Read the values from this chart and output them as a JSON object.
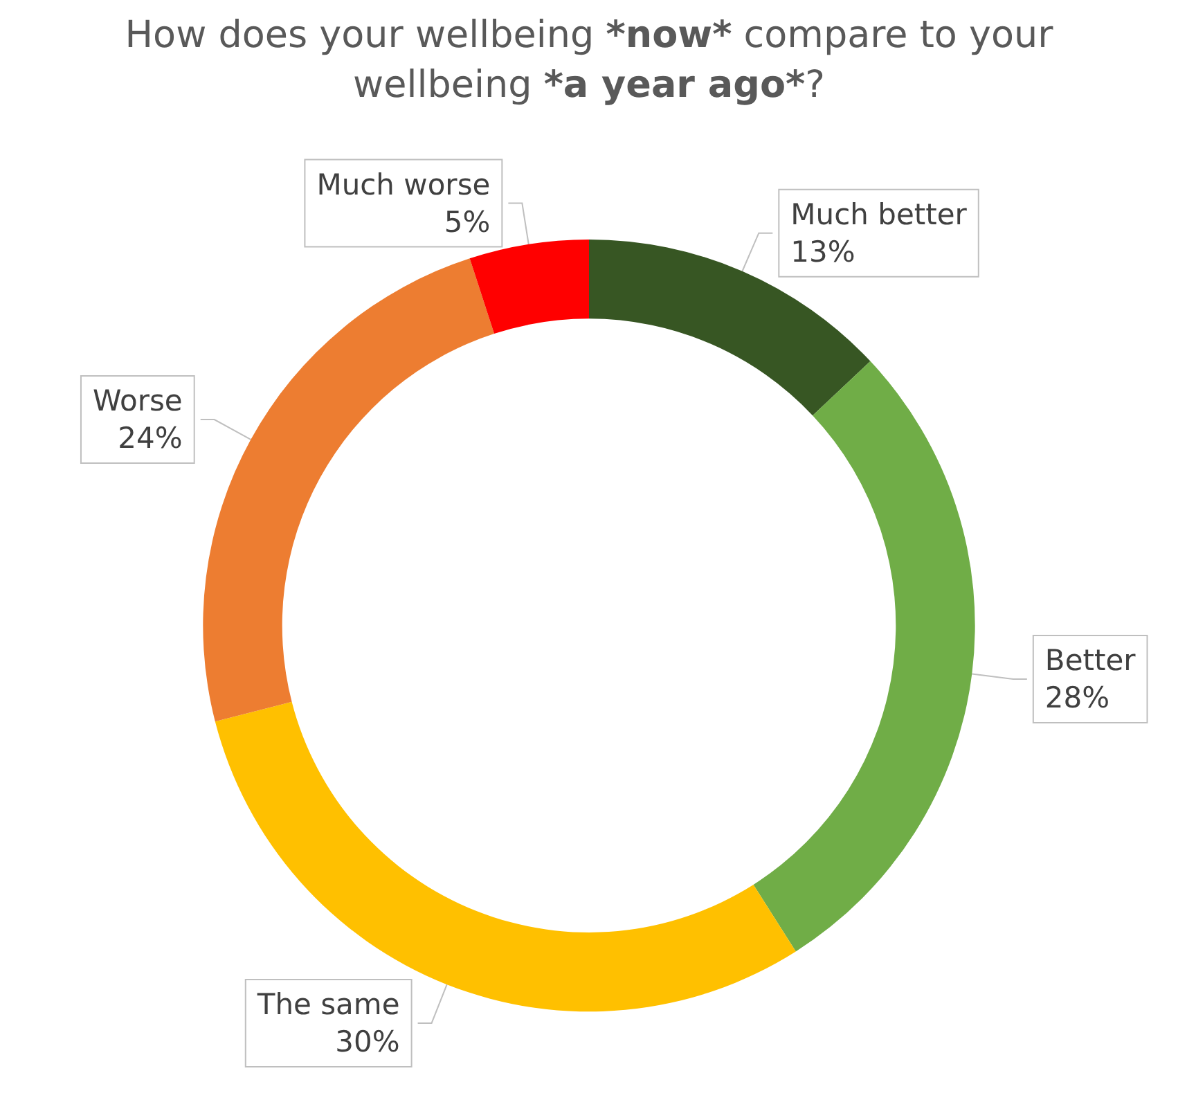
{
  "chart_data": {
    "type": "donut",
    "title": "How does your wellbeing *now* compare to your wellbeing *a year ago*?",
    "categories": [
      "Much better",
      "Better",
      "The same",
      "Worse",
      "Much worse"
    ],
    "values": [
      13,
      28,
      30,
      24,
      5
    ],
    "colors": [
      "#375623",
      "#70ad47",
      "#ffc000",
      "#ed7d31",
      "#ff0000"
    ],
    "value_labels": [
      "13%",
      "28%",
      "30%",
      "24%",
      "5%"
    ]
  }
}
